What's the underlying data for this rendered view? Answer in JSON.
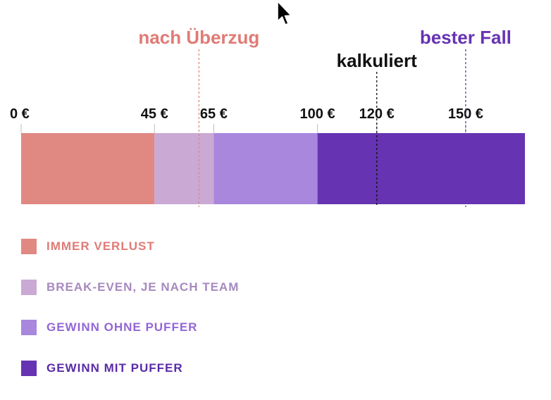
{
  "chart_data": {
    "type": "bar",
    "orientation": "horizontal-stacked",
    "xlim": [
      0,
      170
    ],
    "ticks": [
      {
        "value": 0,
        "label": "0 €"
      },
      {
        "value": 45,
        "label": "45 €"
      },
      {
        "value": 65,
        "label": "65 €"
      },
      {
        "value": 100,
        "label": "100 €"
      },
      {
        "value": 120,
        "label": "120 €"
      },
      {
        "value": 150,
        "label": "150 €"
      }
    ],
    "segments": [
      {
        "name": "IMMER VERLUST",
        "start": 0,
        "end": 45,
        "color": "#e08882",
        "label_color": "#e07b76"
      },
      {
        "name": "BREAK-EVEN, JE NACH TEAM",
        "start": 45,
        "end": 65,
        "color": "#caa9d4",
        "label_color": "#a689bf"
      },
      {
        "name": "GEWINN OHNE PUFFER",
        "start": 65,
        "end": 100,
        "color": "#a887dd",
        "label_color": "#9366d6"
      },
      {
        "name": "GEWINN MIT PUFFER",
        "start": 100,
        "end": 170,
        "color": "#6633b3",
        "label_color": "#5a2ba8"
      }
    ],
    "markers": [
      {
        "label": "nach Überzug",
        "value": 60,
        "color": "#e07b76",
        "line_color": "#e08882",
        "row": "upper"
      },
      {
        "label": "kalkuliert",
        "value": 120,
        "color": "#111111",
        "line_color": "#111111",
        "row": "lower"
      },
      {
        "label": "bester Fall",
        "value": 150,
        "color": "#6633b3",
        "line_color": "#6633b3",
        "row": "upper"
      }
    ],
    "grid": false,
    "legend_position": "bottom-left"
  }
}
